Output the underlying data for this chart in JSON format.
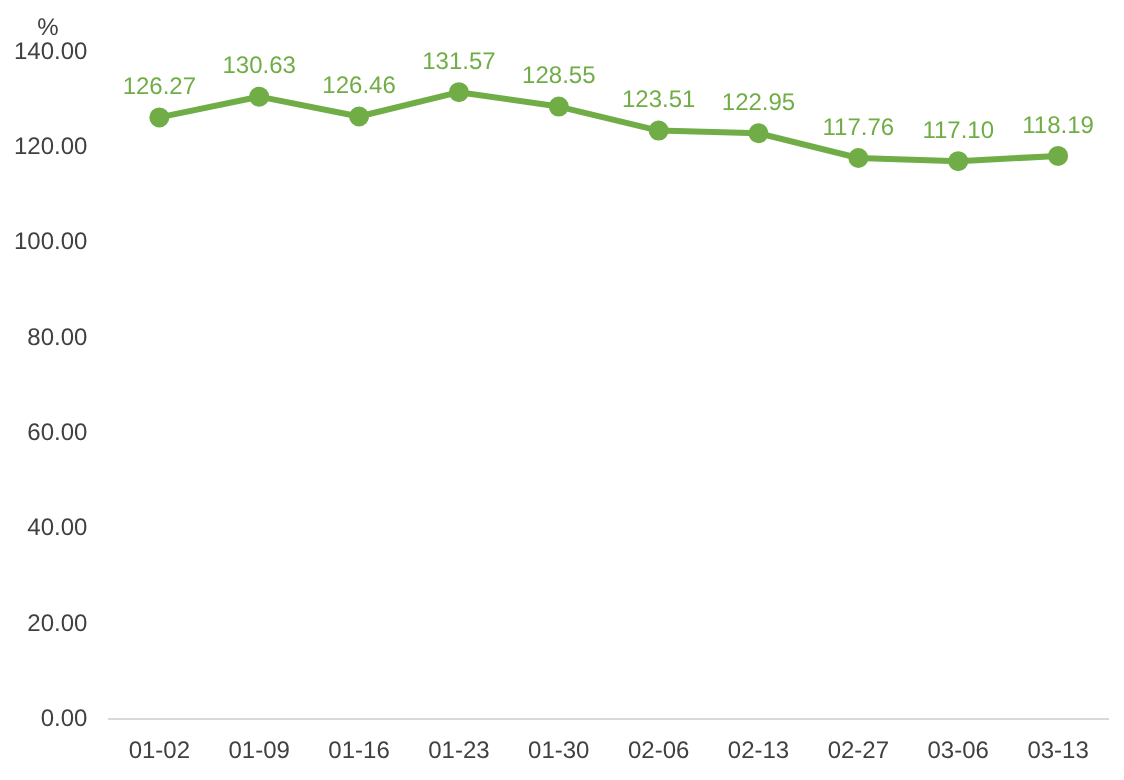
{
  "chart_data": {
    "type": "line",
    "ylabel": "%",
    "categories": [
      "01-02",
      "01-09",
      "01-16",
      "01-23",
      "01-30",
      "02-06",
      "02-13",
      "02-27",
      "03-06",
      "03-13"
    ],
    "series": [
      {
        "color": "#70ad47",
        "values": [
          126.27,
          130.63,
          126.46,
          131.57,
          128.55,
          123.51,
          122.95,
          117.76,
          117.1,
          118.19
        ],
        "value_labels": [
          "126.27",
          "130.63",
          "126.46",
          "131.57",
          "128.55",
          "123.51",
          "122.95",
          "117.76",
          "117.10",
          "118.19"
        ]
      }
    ],
    "ylim": [
      0,
      140
    ],
    "yticks": [
      {
        "value": 0,
        "label": "0.00"
      },
      {
        "value": 20,
        "label": "20.00"
      },
      {
        "value": 40,
        "label": "40.00"
      },
      {
        "value": 60,
        "label": "60.00"
      },
      {
        "value": 80,
        "label": "80.00"
      },
      {
        "value": 100,
        "label": "100.00"
      },
      {
        "value": 120,
        "label": "120.00"
      },
      {
        "value": 140,
        "label": "140.00"
      }
    ],
    "grid": false,
    "legend": false,
    "marker": "circle",
    "line_style": "solid"
  }
}
